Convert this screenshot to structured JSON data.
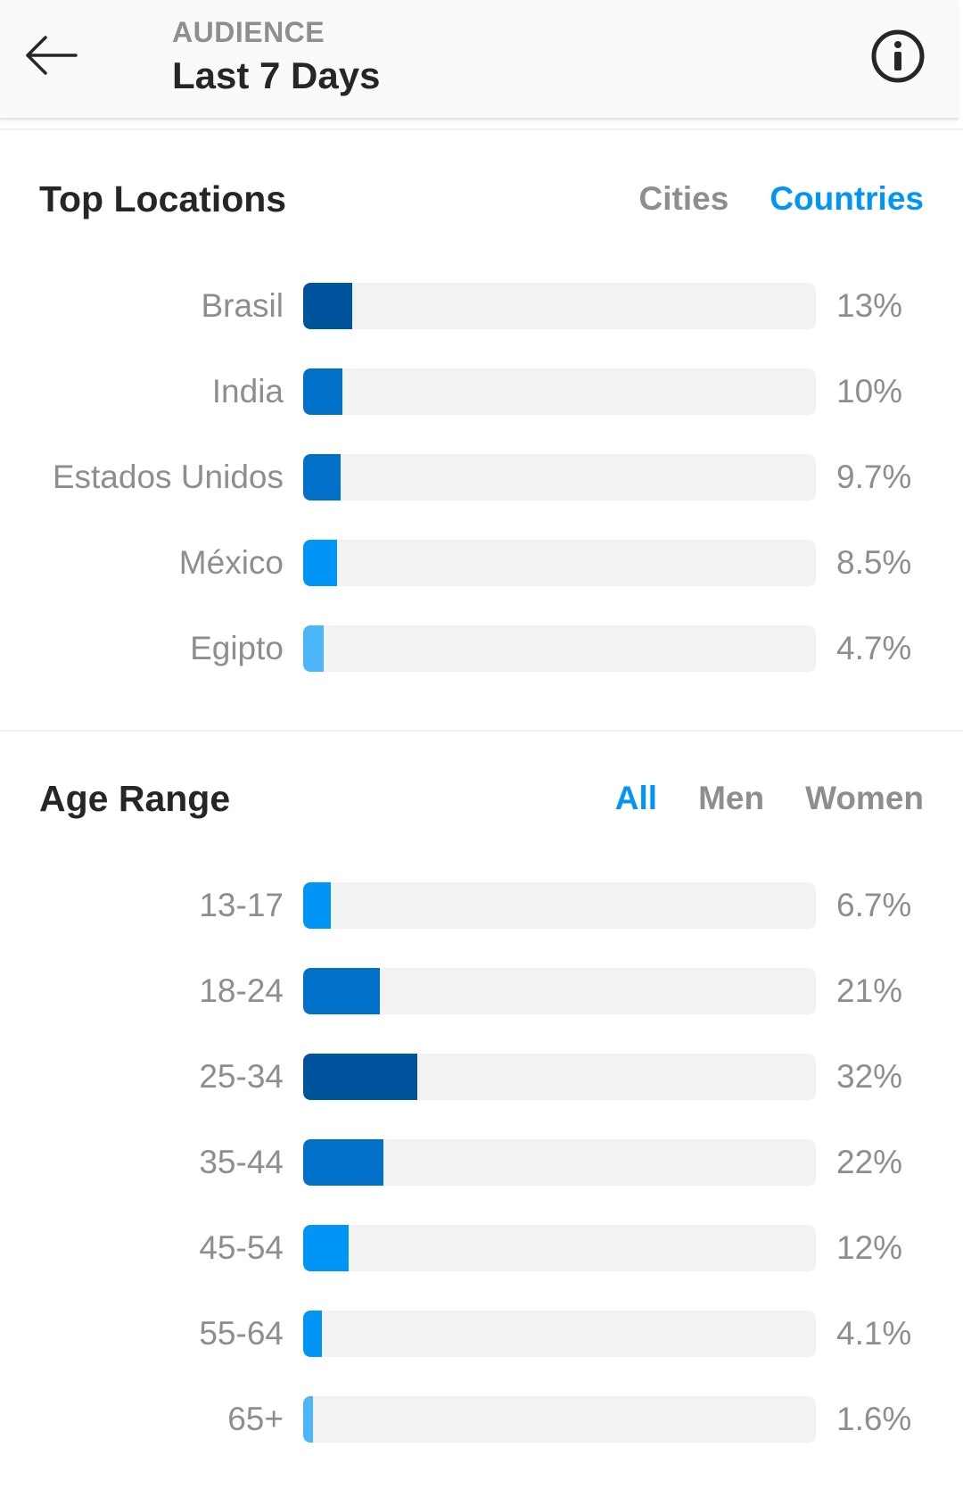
{
  "header": {
    "kicker": "AUDIENCE",
    "title": "Last 7 Days"
  },
  "top_locations": {
    "title": "Top Locations",
    "tabs": [
      {
        "label": "Cities",
        "active": false
      },
      {
        "label": "Countries",
        "active": true
      }
    ],
    "rows": [
      {
        "label": "Brasil",
        "value_text": "13%",
        "value": 13,
        "color": "#00549e"
      },
      {
        "label": "India",
        "value_text": "10%",
        "value": 10,
        "color": "#0070c9"
      },
      {
        "label": "Estados Unidos",
        "value_text": "9.7%",
        "value": 9.7,
        "color": "#0070c9"
      },
      {
        "label": "México",
        "value_text": "8.5%",
        "value": 8.5,
        "color": "#0095f6"
      },
      {
        "label": "Egipto",
        "value_text": "4.7%",
        "value": 4.7,
        "color": "#4db5f9"
      }
    ]
  },
  "age_range": {
    "title": "Age Range",
    "tabs": [
      {
        "label": "All",
        "active": true
      },
      {
        "label": "Men",
        "active": false
      },
      {
        "label": "Women",
        "active": false
      }
    ],
    "rows": [
      {
        "label": "13-17",
        "value_text": "6.7%",
        "value": 6.7,
        "color": "#0095f6"
      },
      {
        "label": "18-24",
        "value_text": "21%",
        "value": 21,
        "color": "#0070c9"
      },
      {
        "label": "25-34",
        "value_text": "32%",
        "value": 32,
        "color": "#00549e"
      },
      {
        "label": "35-44",
        "value_text": "22%",
        "value": 22,
        "color": "#0070c9"
      },
      {
        "label": "45-54",
        "value_text": "12%",
        "value": 12,
        "color": "#0095f6"
      },
      {
        "label": "55-64",
        "value_text": "4.1%",
        "value": 4.1,
        "color": "#0095f6"
      },
      {
        "label": "65+",
        "value_text": "1.6%",
        "value": 1.6,
        "color": "#4db5f9"
      }
    ]
  },
  "icons": {
    "back": "arrow-left-icon",
    "info": "info-circle-icon"
  },
  "colors": {
    "accent": "#0095f6",
    "track": "#f2f2f2",
    "muted_text": "#8e8e8e",
    "primary_text": "#262626"
  }
}
